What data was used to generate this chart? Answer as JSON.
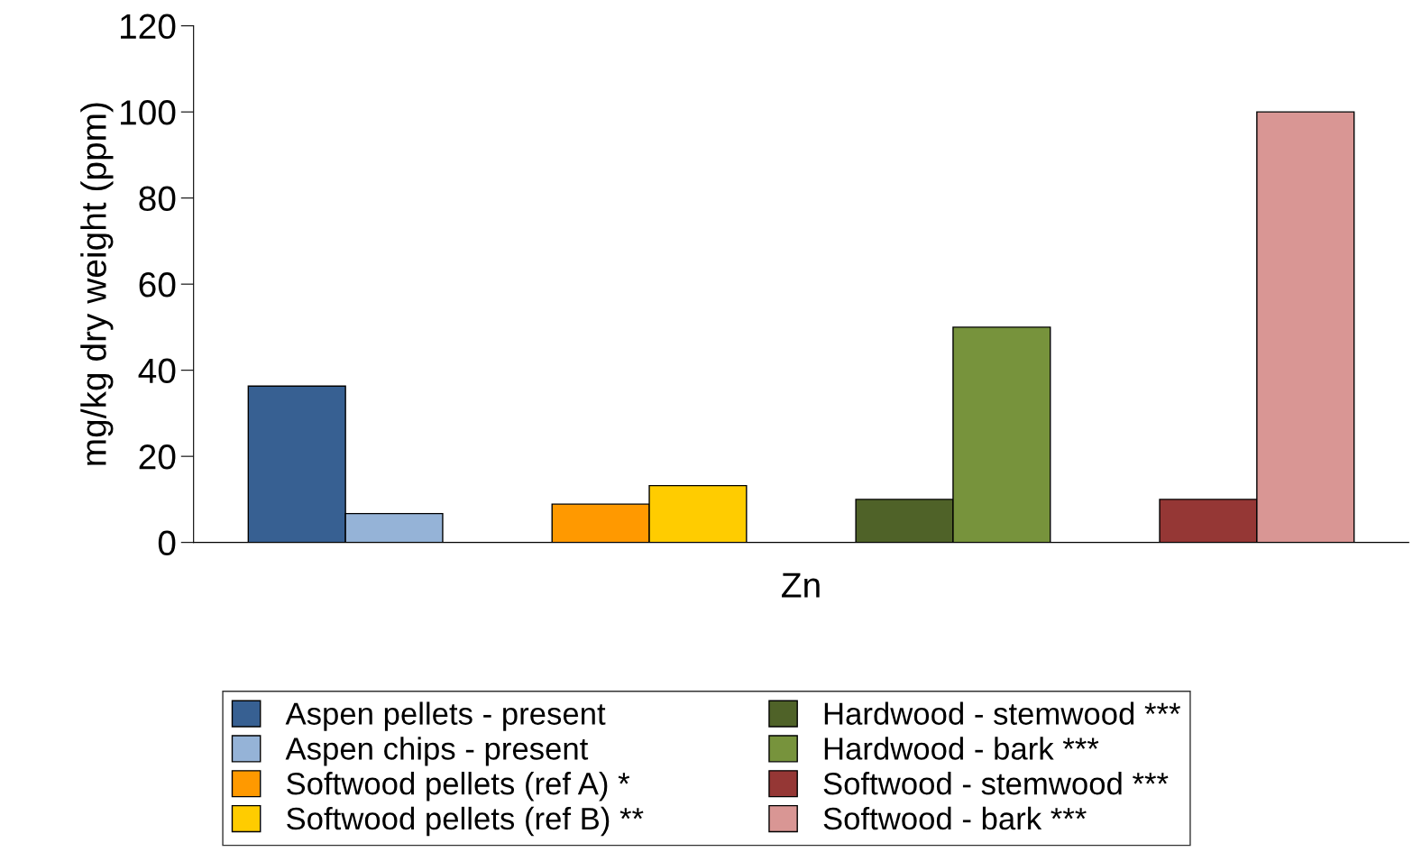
{
  "chart_data": {
    "type": "bar",
    "xlabel": "Zn",
    "ylabel": "mg/kg dry weight (ppm)",
    "categories": [
      null,
      null,
      null,
      null
    ],
    "series": [
      {
        "name": "Aspen pellets - present",
        "color": "#376092",
        "values": [
          36.3,
          null,
          null,
          null
        ]
      },
      {
        "name": "Aspen chips - present",
        "color": "#95b3d7",
        "values": [
          6.7,
          null,
          null,
          null
        ]
      },
      {
        "name": "Softwood pellets (ref A) *",
        "color": "#ff9900",
        "values": [
          null,
          8.9,
          null,
          null
        ]
      },
      {
        "name": "Softwood pellets (ref B) **",
        "color": "#ffcc00",
        "values": [
          null,
          13.2,
          null,
          null
        ]
      },
      {
        "name": "Hardwood - stemwood ***",
        "color": "#4f6228",
        "values": [
          null,
          null,
          10,
          null
        ]
      },
      {
        "name": "Hardwood - bark ***",
        "color": "#77933c",
        "values": [
          null,
          null,
          50,
          null
        ]
      },
      {
        "name": "Softwood - stemwood ***",
        "color": "#953735",
        "values": [
          null,
          null,
          null,
          10
        ]
      },
      {
        "name": "Softwood - bark ***",
        "color": "#d99694",
        "values": [
          null,
          null,
          null,
          100
        ]
      }
    ],
    "ylim": [
      0,
      120
    ],
    "yticks": [
      0,
      20,
      40,
      60,
      80,
      100,
      120
    ],
    "grid": false,
    "legend": "bottom"
  }
}
